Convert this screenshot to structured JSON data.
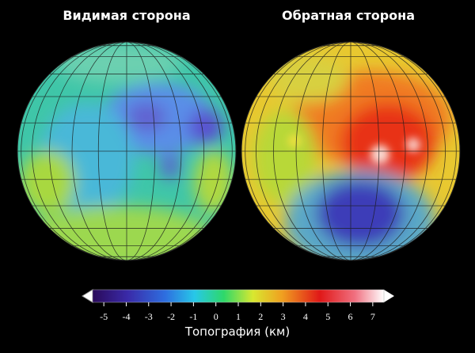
{
  "titles": [
    "Видимая сторона",
    "Обратная сторона"
  ],
  "colorbar": {
    "label": "Топография (км)",
    "range": [
      -5.5,
      7.5
    ],
    "ticks": [
      -5,
      -4,
      -3,
      -2,
      -1,
      0,
      1,
      2,
      3,
      4,
      5,
      6,
      7
    ]
  }
}
